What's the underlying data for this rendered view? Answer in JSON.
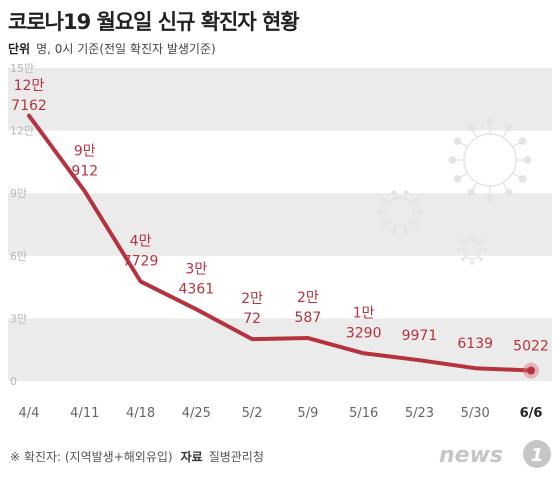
{
  "title": "코로나19 월요일 신규 확진자 현황",
  "subtitle": {
    "label": "단위",
    "text": "명, 0시 기준(전일 확진자 발생기준)"
  },
  "footer": {
    "note": "※ 확진자: (지역발생+해외유입)",
    "source_label": "자료",
    "source": "질병관리청"
  },
  "logo": {
    "text": "news",
    "mark": "1"
  },
  "colors": {
    "line": "#b5333f",
    "label": "#b5333f",
    "band": "#ebebeb",
    "axis_text": "#b8b8b8",
    "highlight": "#e06a74"
  },
  "chart_data": {
    "type": "line",
    "categories": [
      "4/4",
      "4/11",
      "4/18",
      "4/25",
      "5/2",
      "5/9",
      "5/16",
      "5/23",
      "5/30",
      "6/6"
    ],
    "values": [
      127162,
      90912,
      47729,
      34361,
      20072,
      20587,
      13290,
      9971,
      6139,
      5022
    ],
    "labels": [
      [
        "12만",
        "7162"
      ],
      [
        "9만",
        "912"
      ],
      [
        "4만",
        "7729"
      ],
      [
        "3만",
        "4361"
      ],
      [
        "2만",
        "72"
      ],
      [
        "2만",
        "587"
      ],
      [
        "1만",
        "3290"
      ],
      [
        "9971"
      ],
      [
        "6139"
      ],
      [
        "5022"
      ]
    ],
    "y_ticks": [
      "15만",
      "12만",
      "9만",
      "6만",
      "3만",
      "0"
    ],
    "ylim": [
      0,
      150000
    ],
    "highlight_category": "6/6",
    "grid": "horizontal bands"
  }
}
